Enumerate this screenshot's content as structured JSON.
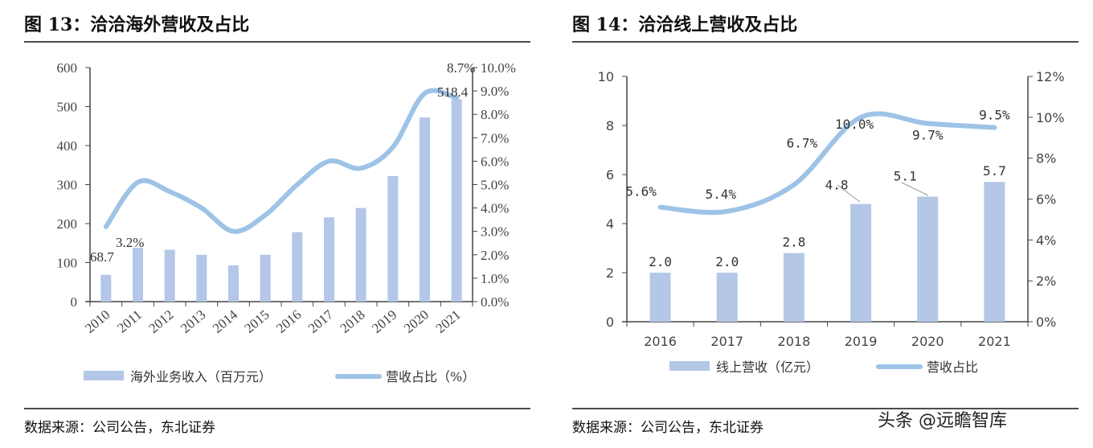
{
  "chart_data": [
    {
      "type": "bar",
      "title": "图 13：洽洽海外营收及占比",
      "source": "数据来源：公司公告，东北证券",
      "categories": [
        "2010",
        "2011",
        "2012",
        "2013",
        "2014",
        "2015",
        "2016",
        "2017",
        "2018",
        "2019",
        "2020",
        "2021"
      ],
      "series": [
        {
          "name": "海外业务收入（百万元）",
          "type": "bar",
          "axis": "left",
          "values": [
            68.7,
            138,
            133,
            120,
            93,
            120,
            178,
            216,
            240,
            322,
            472,
            518.4
          ]
        },
        {
          "name": "营收占比（%）",
          "type": "line",
          "axis": "right",
          "values": [
            3.2,
            5.1,
            4.7,
            4.0,
            3.0,
            3.7,
            5.0,
            6.0,
            5.7,
            6.6,
            8.9,
            8.7
          ]
        }
      ],
      "data_labels": [
        "68.7",
        "3.2%",
        "518.4",
        "8.7%"
      ],
      "ylim": [
        0,
        600
      ],
      "yticks": [
        "0",
        "100",
        "200",
        "300",
        "400",
        "500",
        "600"
      ],
      "y2lim": [
        0,
        10
      ],
      "y2ticks": [
        "0.0%",
        "1.0%",
        "2.0%",
        "3.0%",
        "4.0%",
        "5.0%",
        "6.0%",
        "7.0%",
        "8.0%",
        "9.0%",
        "10.0%"
      ],
      "legend": "bottom",
      "grid": false,
      "colors": {
        "bar": "#b4c7e7",
        "line": "#9dc3e6"
      }
    },
    {
      "type": "bar",
      "title": "图 14：洽洽线上营收及占比",
      "source": "数据来源：公司公告，东北证券",
      "categories": [
        "2016",
        "2017",
        "2018",
        "2019",
        "2020",
        "2021"
      ],
      "series": [
        {
          "name": "线上营收（亿元）",
          "type": "bar",
          "axis": "left",
          "values": [
            2.0,
            2.0,
            2.8,
            4.8,
            5.1,
            5.7
          ],
          "labels": [
            "2.0",
            "2.0",
            "2.8",
            "4.8",
            "5.1",
            "5.7"
          ]
        },
        {
          "name": "营收占比",
          "type": "line",
          "axis": "right",
          "values": [
            5.6,
            5.4,
            6.7,
            10.0,
            9.7,
            9.5
          ],
          "labels": [
            "5.6%",
            "5.4%",
            "6.7%",
            "10.0%",
            "9.7%",
            "9.5%"
          ]
        }
      ],
      "ylim": [
        0,
        10
      ],
      "yticks": [
        "0",
        "2",
        "4",
        "6",
        "8",
        "10"
      ],
      "y2lim": [
        0,
        12
      ],
      "y2ticks": [
        "0%",
        "2%",
        "4%",
        "6%",
        "8%",
        "10%",
        "12%"
      ],
      "legend": "bottom",
      "grid": false,
      "colors": {
        "bar": "#b4c7e7",
        "line": "#9dc3e6"
      }
    }
  ],
  "watermark": "头条 @远瞻智库"
}
